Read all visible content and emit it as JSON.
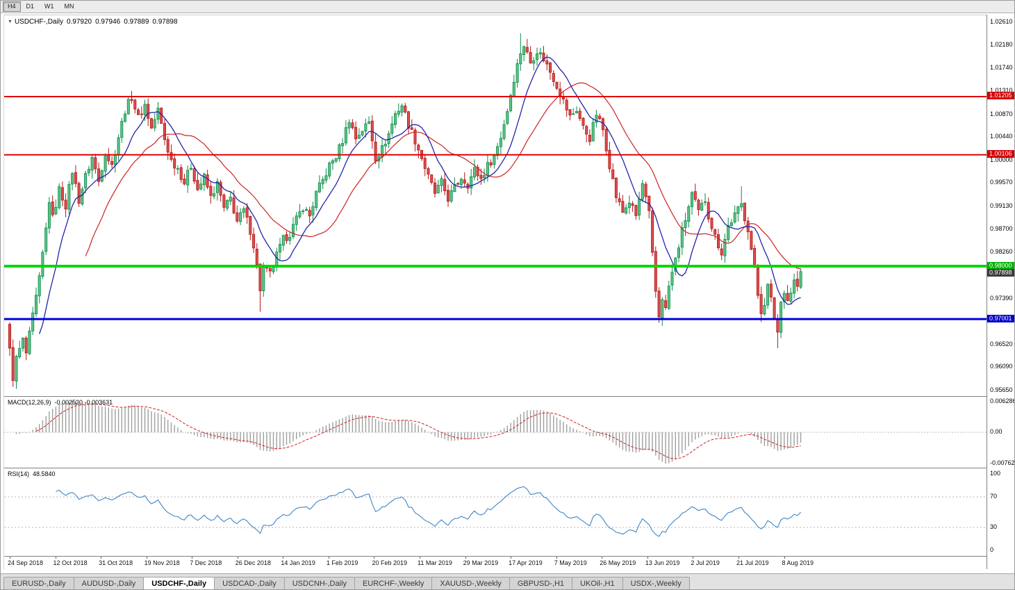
{
  "toolbar": {
    "timeframes": [
      {
        "label": "H4",
        "active": true
      },
      {
        "label": "D1",
        "active": false
      },
      {
        "label": "W1",
        "active": false
      },
      {
        "label": "MN",
        "active": false
      }
    ]
  },
  "symbol_info": {
    "symbol": "USDCHF-,Daily",
    "open": "0.97920",
    "high": "0.97946",
    "low": "0.97889",
    "close": "0.97898"
  },
  "price_scale": {
    "labels": [
      "1.02610",
      "1.02180",
      "1.01740",
      "1.01310",
      "1.00870",
      "1.00440",
      "1.00000",
      "0.99570",
      "0.99130",
      "0.98700",
      "0.98260",
      "0.97830",
      "0.97390",
      "0.96960",
      "0.96520",
      "0.96090",
      "0.95650"
    ]
  },
  "h_lines": [
    {
      "price": 1.01205,
      "label": "1.01205",
      "color": "#e00000",
      "width": 2,
      "badge_bg": "#d40000"
    },
    {
      "price": 1.00106,
      "label": "1.00106",
      "color": "#e00000",
      "width": 2,
      "badge_bg": "#d40000"
    },
    {
      "price": 0.98,
      "label": "0.98000",
      "color": "#00d800",
      "width": 4,
      "badge_bg": "#00b400"
    },
    {
      "price": 0.97001,
      "label": "0.97001",
      "color": "#0000dd",
      "width": 3,
      "badge_bg": "#0000c8"
    }
  ],
  "current_price": {
    "price": 0.97898,
    "label": "0.97898",
    "badge_bg": "#3c3c3c"
  },
  "indicators": {
    "macd": {
      "label": "MACD(12,26,9)",
      "values": "-0.002520 -0.003631",
      "axis_top": "0.006286",
      "axis_zero": "0.00",
      "axis_bottom": "-0.00762",
      "fast": 12,
      "slow": 26,
      "signal": 9
    },
    "rsi": {
      "label": "RSI(14)",
      "value": "48.5840",
      "axis": [
        "100",
        "70",
        "30",
        "0"
      ],
      "period": 14,
      "levels": [
        70,
        30
      ]
    }
  },
  "date_axis": {
    "ticks": [
      "24 Sep 2018",
      "12 Oct 2018",
      "31 Oct 2018",
      "19 Nov 2018",
      "7 Dec 2018",
      "26 Dec 2018",
      "14 Jan 2019",
      "1 Feb 2019",
      "20 Feb 2019",
      "11 Mar 2019",
      "29 Mar 2019",
      "17 Apr 2019",
      "7 May 2019",
      "26 May 2019",
      "13 Jun 2019",
      "2 Jul 2019",
      "21 Jul 2019",
      "8 Aug 2019"
    ]
  },
  "tabs": [
    {
      "label": "EURUSD-,Daily",
      "active": false
    },
    {
      "label": "AUDUSD-,Daily",
      "active": false
    },
    {
      "label": "USDCHF-,Daily",
      "active": true
    },
    {
      "label": "USDCAD-,Daily",
      "active": false
    },
    {
      "label": "USDCNH-,Daily",
      "active": false
    },
    {
      "label": "EURCHF-,Weekly",
      "active": false
    },
    {
      "label": "XAUUSD-,Weekly",
      "active": false
    },
    {
      "label": "GBPUSD-,H1",
      "active": false
    },
    {
      "label": "UKOil-,H1",
      "active": false
    },
    {
      "label": "USDX-,Weekly",
      "active": false
    }
  ],
  "chart_data": {
    "type": "candlestick",
    "symbol": "USDCHF",
    "timeframe": "Daily",
    "title": "USDCHF-,Daily",
    "y_range": [
      0.9565,
      1.0261
    ],
    "x_range": [
      "24 Sep 2018",
      "mid Aug 2019"
    ],
    "ohlc_current": {
      "open": 0.9792,
      "high": 0.97946,
      "low": 0.97889,
      "close": 0.97898
    },
    "levels": [
      1.01205,
      1.00106,
      0.98,
      0.97001
    ],
    "num_candles": 241,
    "close_anchors": [
      [
        0,
        0.964
      ],
      [
        1,
        0.959
      ],
      [
        2,
        0.9625
      ],
      [
        4,
        0.966
      ],
      [
        5,
        0.9635
      ],
      [
        7,
        0.9705
      ],
      [
        9,
        0.9775
      ],
      [
        11,
        0.987
      ],
      [
        12,
        0.9925
      ],
      [
        13,
        0.989
      ],
      [
        15,
        0.9945
      ],
      [
        17,
        0.9915
      ],
      [
        19,
        0.998
      ],
      [
        21,
        0.9925
      ],
      [
        23,
        0.997
      ],
      [
        25,
        1.0005
      ],
      [
        27,
        0.996
      ],
      [
        29,
        1.0015
      ],
      [
        31,
        0.999
      ],
      [
        33,
        1.0045
      ],
      [
        35,
        1.0095
      ],
      [
        37,
        1.012
      ],
      [
        39,
        1.008
      ],
      [
        41,
        1.0105
      ],
      [
        43,
        1.006
      ],
      [
        45,
        1.0095
      ],
      [
        47,
        1.004
      ],
      [
        49,
        1.0
      ],
      [
        51,
        0.9985
      ],
      [
        53,
        0.9958
      ],
      [
        55,
        0.999
      ],
      [
        57,
        0.9945
      ],
      [
        59,
        0.9968
      ],
      [
        61,
        0.993
      ],
      [
        63,
        0.9955
      ],
      [
        65,
        0.9908
      ],
      [
        67,
        0.9928
      ],
      [
        69,
        0.9885
      ],
      [
        71,
        0.9905
      ],
      [
        73,
        0.9868
      ],
      [
        74,
        0.984
      ],
      [
        75,
        0.98
      ],
      [
        76,
        0.9757
      ],
      [
        77,
        0.9795
      ],
      [
        79,
        0.9785
      ],
      [
        81,
        0.982
      ],
      [
        83,
        0.985
      ],
      [
        85,
        0.9862
      ],
      [
        87,
        0.9888
      ],
      [
        89,
        0.9912
      ],
      [
        91,
        0.9895
      ],
      [
        93,
        0.9938
      ],
      [
        95,
        0.9962
      ],
      [
        97,
        0.999
      ],
      [
        99,
        1.0008
      ],
      [
        101,
        1.0038
      ],
      [
        103,
        1.0078
      ],
      [
        105,
        1.0042
      ],
      [
        107,
        1.0058
      ],
      [
        109,
        1.0072
      ],
      [
        110,
        1.004
      ],
      [
        111,
        1.0005
      ],
      [
        113,
        1.0022
      ],
      [
        115,
        1.005
      ],
      [
        117,
        1.0088
      ],
      [
        119,
        1.0105
      ],
      [
        121,
        1.0068
      ],
      [
        123,
        1.0038
      ],
      [
        125,
        1.0005
      ],
      [
        127,
        0.9968
      ],
      [
        129,
        0.9938
      ],
      [
        131,
        0.9958
      ],
      [
        133,
        0.9928
      ],
      [
        135,
        0.9948
      ],
      [
        137,
        0.9968
      ],
      [
        139,
        0.9955
      ],
      [
        141,
        0.9982
      ],
      [
        143,
        0.9965
      ],
      [
        145,
        0.999
      ],
      [
        147,
        1.0008
      ],
      [
        149,
        1.0045
      ],
      [
        151,
        1.0095
      ],
      [
        153,
        1.0155
      ],
      [
        155,
        1.0205
      ],
      [
        156,
        1.0218
      ],
      [
        158,
        1.0185
      ],
      [
        160,
        1.0208
      ],
      [
        162,
        1.0192
      ],
      [
        164,
        1.0168
      ],
      [
        166,
        1.0142
      ],
      [
        168,
        1.0112
      ],
      [
        170,
        1.0082
      ],
      [
        172,
        1.0096
      ],
      [
        174,
        1.0062
      ],
      [
        176,
        1.0042
      ],
      [
        178,
        1.0088
      ],
      [
        180,
        1.0058
      ],
      [
        182,
        0.9992
      ],
      [
        184,
        0.9932
      ],
      [
        186,
        0.9902
      ],
      [
        188,
        0.9922
      ],
      [
        190,
        0.9895
      ],
      [
        192,
        0.9955
      ],
      [
        194,
        0.9898
      ],
      [
        195,
        0.982
      ],
      [
        196,
        0.9752
      ],
      [
        197,
        0.9706
      ],
      [
        198,
        0.9742
      ],
      [
        199,
        0.9718
      ],
      [
        200,
        0.9762
      ],
      [
        202,
        0.9812
      ],
      [
        204,
        0.9866
      ],
      [
        206,
        0.9912
      ],
      [
        207,
        0.9936
      ],
      [
        209,
        0.9902
      ],
      [
        211,
        0.9926
      ],
      [
        212,
        0.9896
      ],
      [
        214,
        0.9856
      ],
      [
        216,
        0.9826
      ],
      [
        218,
        0.9876
      ],
      [
        220,
        0.9896
      ],
      [
        222,
        0.9916
      ],
      [
        223,
        0.9892
      ],
      [
        224,
        0.9872
      ],
      [
        225,
        0.9832
      ],
      [
        226,
        0.9792
      ],
      [
        227,
        0.9746
      ],
      [
        228,
        0.9716
      ],
      [
        229,
        0.9732
      ],
      [
        230,
        0.9762
      ],
      [
        231,
        0.9736
      ],
      [
        232,
        0.9702
      ],
      [
        233,
        0.9676
      ],
      [
        234,
        0.9732
      ],
      [
        235,
        0.9756
      ],
      [
        236,
        0.9736
      ],
      [
        237,
        0.9752
      ],
      [
        238,
        0.9772
      ],
      [
        239,
        0.9762
      ],
      [
        240,
        0.97898
      ]
    ],
    "wick_high_overrides": {
      "37": 1.0131,
      "155": 1.024,
      "222": 0.9951
    },
    "wick_low_overrides": {
      "1": 0.9572,
      "76": 0.9714,
      "197": 0.9693,
      "233": 0.9645
    },
    "ma_fast_period": 10,
    "ma_slow_period": 24,
    "colors": {
      "bull": "#0a8a48",
      "bull_fill": "#5ec487",
      "bear": "#b41414",
      "bear_fill": "#d94f4f",
      "ma_fast": "#2222aa",
      "ma_slow": "#cc2222",
      "macd_hist": "#9e9e9e",
      "macd_signal": "#cc2222",
      "rsi": "#3d85c8",
      "level_red": "#e00000",
      "level_green": "#00d800",
      "level_blue": "#0000dd"
    }
  }
}
